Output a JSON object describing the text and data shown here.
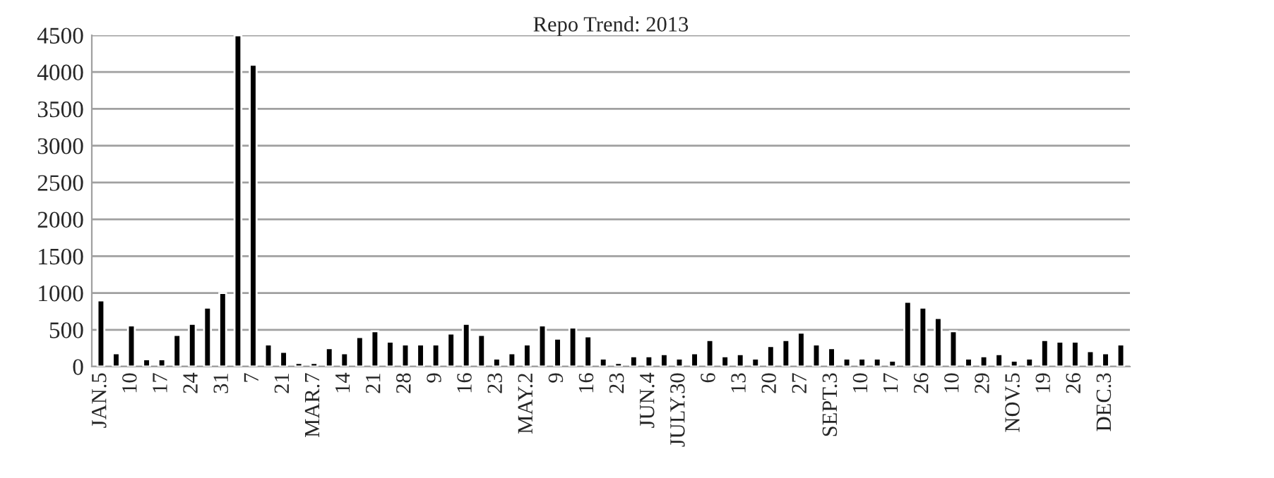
{
  "chart_data": {
    "type": "bar",
    "title": "Repo Trend: 2013",
    "categories": [
      "JAN.5",
      null,
      "10",
      null,
      "17",
      null,
      "24",
      null,
      "31",
      null,
      "7",
      null,
      "21",
      null,
      "MAR.7",
      null,
      "14",
      null,
      "21",
      null,
      "28",
      null,
      "9",
      null,
      "16",
      null,
      "23",
      null,
      "MAY.2",
      null,
      "9",
      null,
      "16",
      null,
      "23",
      null,
      "JUN.4",
      null,
      "JULY.30",
      null,
      "6",
      null,
      "13",
      null,
      "20",
      null,
      "27",
      null,
      "SEPT.3",
      null,
      "10",
      null,
      "17",
      null,
      "26",
      null,
      "10",
      null,
      "29",
      null,
      "NOV.5",
      null,
      "19",
      null,
      "26",
      null,
      "DEC.3",
      null
    ],
    "values": [
      900,
      180,
      560,
      100,
      100,
      430,
      580,
      800,
      1000,
      4500,
      4100,
      300,
      200,
      50,
      50,
      250,
      180,
      400,
      480,
      340,
      300,
      300,
      300,
      450,
      580,
      430,
      110,
      180,
      300,
      560,
      380,
      530,
      410,
      110,
      50,
      140,
      140,
      170,
      110,
      180,
      360,
      140,
      170,
      110,
      280,
      360,
      460,
      300,
      250,
      110,
      110,
      110,
      80,
      880,
      800,
      660,
      480,
      110,
      140,
      170,
      80,
      110,
      360,
      340,
      340,
      210,
      180,
      300
    ],
    "color": "#000000",
    "ylim": [
      0,
      4500
    ],
    "yticks": [
      0,
      500,
      1000,
      1500,
      2000,
      2500,
      3000,
      3500,
      4000,
      4500
    ],
    "grid": "y",
    "legend": false
  }
}
